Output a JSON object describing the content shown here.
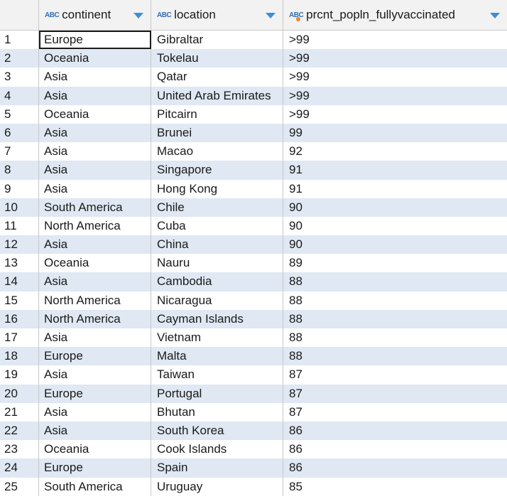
{
  "columns": [
    {
      "name": "continent",
      "type_icon": "ABC"
    },
    {
      "name": "location",
      "type_icon": "ABC"
    },
    {
      "name": "prcnt_popln_fullyvaccinated",
      "type_icon": "ABC"
    }
  ],
  "rows": [
    {
      "n": "1",
      "continent": "Europe",
      "location": "Gibraltar",
      "pct": ">99"
    },
    {
      "n": "2",
      "continent": "Oceania",
      "location": "Tokelau",
      "pct": ">99"
    },
    {
      "n": "3",
      "continent": "Asia",
      "location": "Qatar",
      "pct": ">99"
    },
    {
      "n": "4",
      "continent": "Asia",
      "location": "United Arab Emirates",
      "pct": ">99"
    },
    {
      "n": "5",
      "continent": "Oceania",
      "location": "Pitcairn",
      "pct": ">99"
    },
    {
      "n": "6",
      "continent": "Asia",
      "location": "Brunei",
      "pct": "99"
    },
    {
      "n": "7",
      "continent": "Asia",
      "location": "Macao",
      "pct": "92"
    },
    {
      "n": "8",
      "continent": "Asia",
      "location": "Singapore",
      "pct": "91"
    },
    {
      "n": "9",
      "continent": "Asia",
      "location": "Hong Kong",
      "pct": "91"
    },
    {
      "n": "10",
      "continent": "South America",
      "location": "Chile",
      "pct": "90"
    },
    {
      "n": "11",
      "continent": "North America",
      "location": "Cuba",
      "pct": "90"
    },
    {
      "n": "12",
      "continent": "Asia",
      "location": "China",
      "pct": "90"
    },
    {
      "n": "13",
      "continent": "Oceania",
      "location": "Nauru",
      "pct": "89"
    },
    {
      "n": "14",
      "continent": "Asia",
      "location": "Cambodia",
      "pct": "88"
    },
    {
      "n": "15",
      "continent": "North America",
      "location": "Nicaragua",
      "pct": "88"
    },
    {
      "n": "16",
      "continent": "North America",
      "location": "Cayman Islands",
      "pct": "88"
    },
    {
      "n": "17",
      "continent": "Asia",
      "location": "Vietnam",
      "pct": "88"
    },
    {
      "n": "18",
      "continent": "Europe",
      "location": "Malta",
      "pct": "88"
    },
    {
      "n": "19",
      "continent": "Asia",
      "location": "Taiwan",
      "pct": "87"
    },
    {
      "n": "20",
      "continent": "Europe",
      "location": "Portugal",
      "pct": "87"
    },
    {
      "n": "21",
      "continent": "Asia",
      "location": "Bhutan",
      "pct": "87"
    },
    {
      "n": "22",
      "continent": "Asia",
      "location": "South Korea",
      "pct": "86"
    },
    {
      "n": "23",
      "continent": "Oceania",
      "location": "Cook Islands",
      "pct": "86"
    },
    {
      "n": "24",
      "continent": "Europe",
      "location": "Spain",
      "pct": "86"
    },
    {
      "n": "25",
      "continent": "South America",
      "location": "Uruguay",
      "pct": "85"
    }
  ],
  "colors": {
    "alt_row": "#dfe8f3",
    "header_bg": "#f2f2f2",
    "sort_arrow": "#3d8fd6",
    "type_icon": "#2f6fb3"
  }
}
